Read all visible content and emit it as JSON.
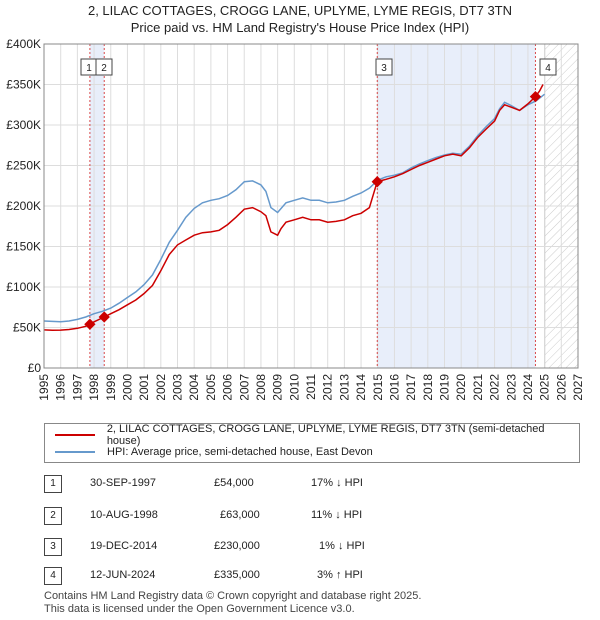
{
  "title_line1": "2, LILAC COTTAGES, CROGG LANE, UPLYME, LYME REGIS, DT7 3TN",
  "title_line2": "Price paid vs. HM Land Registry's House Price Index (HPI)",
  "colors": {
    "property": "#cc0000",
    "hpi": "#6699cc",
    "shade": "#e8eefa",
    "marker": "#cc0000"
  },
  "legend": {
    "property_label": "2, LILAC COTTAGES, CROGG LANE, UPLYME, LYME REGIS, DT7 3TN (semi-detached house)",
    "hpi_label": "HPI: Average price, semi-detached house, East Devon"
  },
  "transactions": [
    {
      "num": "1",
      "date": "30-SEP-1997",
      "price": "£54,000",
      "hpi": "17% ↓ HPI"
    },
    {
      "num": "2",
      "date": "10-AUG-1998",
      "price": "£63,000",
      "hpi": "11% ↓ HPI"
    },
    {
      "num": "3",
      "date": "19-DEC-2014",
      "price": "£230,000",
      "hpi": "1% ↓ HPI"
    },
    {
      "num": "4",
      "date": "12-JUN-2024",
      "price": "£335,000",
      "hpi": "3% ↑ HPI"
    }
  ],
  "footer": {
    "line1": "Contains HM Land Registry data © Crown copyright and database right 2025.",
    "line2": "This data is licensed under the Open Government Licence v3.0."
  },
  "chart_data": {
    "type": "line",
    "title": "Price paid vs. HM Land Registry's House Price Index (HPI)",
    "xlim": [
      1995,
      2027
    ],
    "ylim": [
      0,
      400000
    ],
    "y_ticks": [
      0,
      50000,
      100000,
      150000,
      200000,
      250000,
      300000,
      350000,
      400000
    ],
    "y_tick_labels": [
      "£0",
      "£50K",
      "£100K",
      "£150K",
      "£200K",
      "£250K",
      "£300K",
      "£350K",
      "£400K"
    ],
    "x_ticks": [
      1995,
      1996,
      1997,
      1998,
      1999,
      2000,
      2001,
      2002,
      2003,
      2004,
      2005,
      2006,
      2007,
      2008,
      2009,
      2010,
      2011,
      2012,
      2013,
      2014,
      2015,
      2016,
      2017,
      2018,
      2019,
      2020,
      2021,
      2022,
      2023,
      2024,
      2025,
      2026,
      2027
    ],
    "x_tick_labels": [
      "1995",
      "1996",
      "1997",
      "1998",
      "1999",
      "2000",
      "2001",
      "2002",
      "2003",
      "2004",
      "2005",
      "2006",
      "2007",
      "2008",
      "2009",
      "2010",
      "2011",
      "2012",
      "2013",
      "2014",
      "2015",
      "2016",
      "2017",
      "2018",
      "2019",
      "2020",
      "2021",
      "2022",
      "2023",
      "2024",
      "2025",
      "2026",
      "2027"
    ],
    "grid": true,
    "forecast_start": 2025.0,
    "shaded_ranges": [
      [
        1997.75,
        1998.61
      ],
      [
        2014.97,
        2024.45
      ]
    ],
    "series": [
      {
        "name": "2, LILAC COTTAGES, CROGG LANE, UPLYME, LYME REGIS, DT7 3TN (semi-detached house)",
        "x": [
          1995,
          1995.5,
          1996,
          1996.5,
          1997,
          1997.5,
          1997.75,
          1998,
          1998.61,
          1999,
          1999.5,
          2000,
          2000.5,
          2001,
          2001.5,
          2002,
          2002.5,
          2003,
          2003.5,
          2004,
          2004.5,
          2005,
          2005.5,
          2006,
          2006.5,
          2007,
          2007.5,
          2008,
          2008.3,
          2008.6,
          2009,
          2009.2,
          2009.5,
          2010,
          2010.5,
          2011,
          2011.5,
          2012,
          2012.5,
          2013,
          2013.5,
          2014,
          2014.5,
          2014.97,
          2015.5,
          2016,
          2016.5,
          2017,
          2017.5,
          2018,
          2018.5,
          2019,
          2019.5,
          2020,
          2020.5,
          2021,
          2021.5,
          2022,
          2022.3,
          2022.6,
          2023,
          2023.5,
          2024,
          2024.45,
          2024.7,
          2024.9
        ],
        "y": [
          47000,
          46500,
          46800,
          47500,
          49000,
          51500,
          54000,
          57000,
          63000,
          67000,
          72000,
          78000,
          84000,
          92000,
          102000,
          120000,
          140000,
          152000,
          158000,
          164000,
          167000,
          168000,
          170000,
          177000,
          186000,
          196000,
          198000,
          193000,
          188000,
          168000,
          164000,
          172000,
          180000,
          183000,
          186000,
          183000,
          183000,
          180000,
          181000,
          183000,
          188000,
          191000,
          198000,
          230000,
          233000,
          236000,
          240000,
          245000,
          250000,
          254000,
          258000,
          262000,
          264000,
          262000,
          272000,
          285000,
          295000,
          305000,
          318000,
          325000,
          322000,
          318000,
          326000,
          335000,
          342000,
          350000
        ]
      },
      {
        "name": "HPI: Average price, semi-detached house, East Devon",
        "x": [
          1995,
          1995.5,
          1996,
          1996.5,
          1997,
          1997.5,
          1998,
          1998.5,
          1999,
          1999.5,
          2000,
          2000.5,
          2001,
          2001.5,
          2002,
          2002.5,
          2003,
          2003.5,
          2004,
          2004.5,
          2005,
          2005.5,
          2006,
          2006.5,
          2007,
          2007.5,
          2008,
          2008.3,
          2008.6,
          2009,
          2009.5,
          2010,
          2010.5,
          2011,
          2011.5,
          2012,
          2012.5,
          2013,
          2013.5,
          2014,
          2014.5,
          2015,
          2015.5,
          2016,
          2016.5,
          2017,
          2017.5,
          2018,
          2018.5,
          2019,
          2019.5,
          2020,
          2020.5,
          2021,
          2021.5,
          2022,
          2022.3,
          2022.6,
          2023,
          2023.5,
          2024,
          2024.5,
          2025
        ],
        "y": [
          58000,
          57500,
          57000,
          58000,
          60000,
          63000,
          67000,
          70000,
          74000,
          80000,
          87000,
          94000,
          103000,
          115000,
          134000,
          155000,
          170000,
          186000,
          197000,
          204000,
          207000,
          209000,
          213000,
          220000,
          230000,
          231000,
          226000,
          218000,
          198000,
          192000,
          204000,
          207000,
          210000,
          207000,
          207000,
          204000,
          205000,
          207000,
          212000,
          216000,
          222000,
          232000,
          236000,
          238000,
          241000,
          247000,
          252000,
          256000,
          260000,
          263000,
          265000,
          264000,
          274000,
          287000,
          298000,
          308000,
          320000,
          328000,
          324000,
          318000,
          325000,
          330000,
          338000
        ]
      }
    ],
    "markers": [
      {
        "label": "1",
        "x": 1997.75,
        "y": 54000
      },
      {
        "label": "2",
        "x": 1998.61,
        "y": 63000
      },
      {
        "label": "3",
        "x": 2014.97,
        "y": 230000
      },
      {
        "label": "4",
        "x": 2024.45,
        "y": 335000
      }
    ]
  }
}
